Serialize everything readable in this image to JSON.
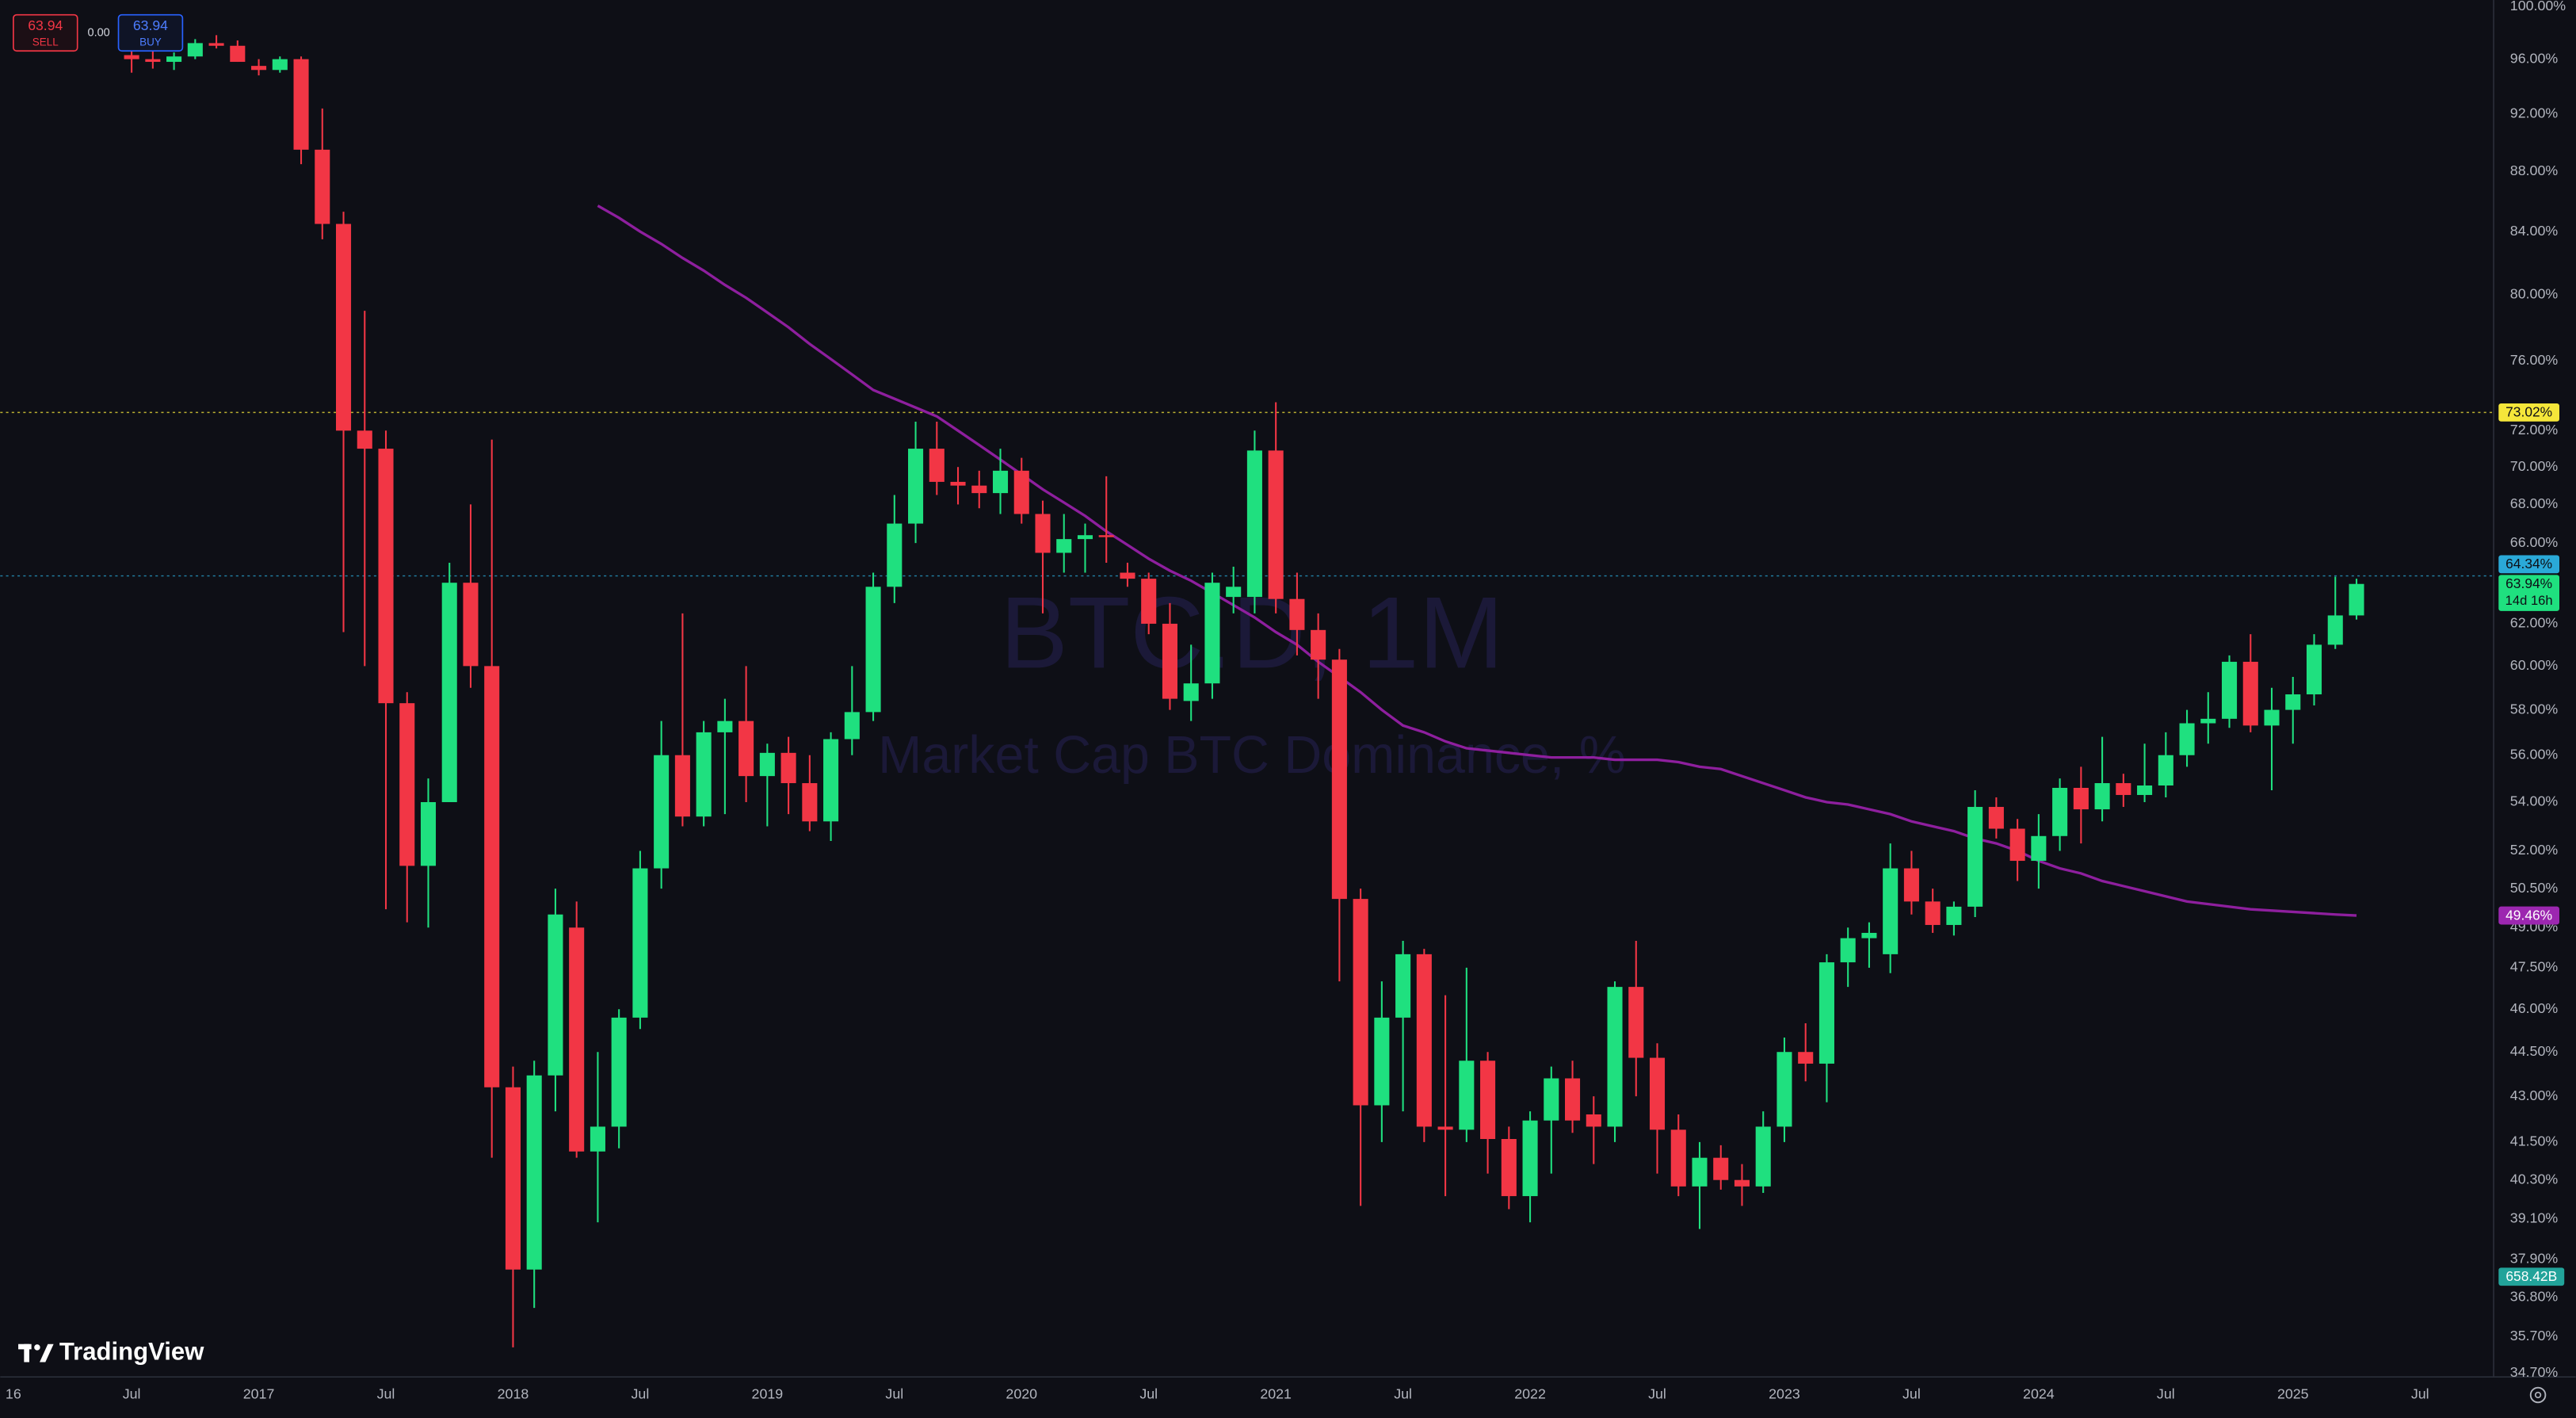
{
  "chart_data": {
    "type": "candlestick",
    "title": "BTC.D, 1M",
    "subtitle": "Market Cap BTC Dominance, %",
    "x": [
      "2016-07",
      "2016-08",
      "2016-09",
      "2016-10",
      "2016-11",
      "2016-12",
      "2017-01",
      "2017-02",
      "2017-03",
      "2017-04",
      "2017-05",
      "2017-06",
      "2017-07",
      "2017-08",
      "2017-09",
      "2017-10",
      "2017-11",
      "2017-12",
      "2018-01",
      "2018-02",
      "2018-03",
      "2018-04",
      "2018-05",
      "2018-06",
      "2018-07",
      "2018-08",
      "2018-09",
      "2018-10",
      "2018-11",
      "2018-12",
      "2019-01",
      "2019-02",
      "2019-03",
      "2019-04",
      "2019-05",
      "2019-06",
      "2019-07",
      "2019-08",
      "2019-09",
      "2019-10",
      "2019-11",
      "2019-12",
      "2020-01",
      "2020-02",
      "2020-03",
      "2020-04",
      "2020-05",
      "2020-06",
      "2020-07",
      "2020-08",
      "2020-09",
      "2020-10",
      "2020-11",
      "2020-12",
      "2021-01",
      "2021-02",
      "2021-03",
      "2021-04",
      "2021-05",
      "2021-06",
      "2021-07",
      "2021-08",
      "2021-09",
      "2021-10",
      "2021-11",
      "2021-12",
      "2022-01",
      "2022-02",
      "2022-03",
      "2022-04",
      "2022-05",
      "2022-06",
      "2022-07",
      "2022-08",
      "2022-09",
      "2022-10",
      "2022-11",
      "2022-12",
      "2023-01",
      "2023-02",
      "2023-03",
      "2023-04",
      "2023-05",
      "2023-06",
      "2023-07",
      "2023-08",
      "2023-09",
      "2023-10",
      "2023-11",
      "2023-12",
      "2024-01",
      "2024-02",
      "2024-03",
      "2024-04",
      "2024-05",
      "2024-06",
      "2024-07",
      "2024-08",
      "2024-09",
      "2024-10",
      "2024-11",
      "2024-12",
      "2025-01",
      "2025-02",
      "2025-03",
      "2025-04"
    ],
    "open": [
      96.3,
      96.0,
      95.8,
      96.2,
      97.2,
      97.0,
      95.5,
      95.2,
      96.0,
      89.5,
      84.5,
      72.0,
      71.0,
      58.3,
      51.4,
      54.0,
      64.0,
      60.0,
      43.3,
      37.6,
      43.7,
      49.0,
      41.2,
      42.0,
      45.7,
      51.3,
      56.0,
      53.4,
      57.0,
      57.5,
      55.1,
      56.1,
      54.8,
      53.2,
      56.7,
      57.9,
      63.8,
      67.0,
      71.0,
      69.2,
      69.0,
      68.6,
      69.8,
      67.5,
      65.5,
      66.2,
      66.4,
      64.5,
      64.2,
      62.0,
      58.4,
      59.2,
      63.3,
      63.3,
      70.9,
      63.2,
      61.7,
      60.3,
      50.1,
      42.7,
      45.7,
      48.0,
      42.0,
      41.9,
      44.2,
      41.6,
      39.8,
      42.2,
      43.6,
      42.4,
      42.0,
      46.8,
      44.3,
      41.9,
      40.1,
      41.0,
      40.3,
      40.1,
      42.0,
      44.5,
      44.1,
      47.7,
      48.6,
      48.0,
      51.3,
      50.0,
      49.1,
      49.8,
      53.8,
      52.9,
      51.6,
      52.6,
      54.6,
      53.7,
      54.8,
      54.3,
      54.7,
      56.0,
      57.4,
      57.6,
      60.2,
      57.3,
      58.0,
      58.7,
      61.0,
      62.4
    ],
    "high": [
      96.8,
      96.6,
      96.5,
      97.5,
      97.8,
      97.4,
      96.0,
      96.2,
      96.2,
      92.4,
      85.3,
      79.0,
      72.0,
      58.8,
      55.0,
      65.0,
      68.0,
      71.5,
      44.0,
      44.2,
      50.5,
      50.0,
      44.5,
      46.0,
      52.0,
      57.5,
      62.5,
      57.5,
      58.5,
      60.0,
      56.5,
      56.8,
      56.0,
      57.0,
      60.0,
      64.5,
      68.5,
      72.5,
      72.5,
      70.0,
      69.8,
      71.0,
      70.5,
      68.2,
      67.5,
      67.0,
      69.5,
      65.0,
      64.5,
      63.0,
      61.0,
      64.5,
      64.8,
      72.0,
      73.6,
      64.5,
      62.5,
      60.8,
      50.5,
      47.0,
      48.5,
      48.2,
      46.5,
      47.5,
      44.5,
      42.0,
      42.5,
      44.0,
      44.2,
      43.0,
      47.0,
      48.5,
      44.8,
      42.4,
      41.5,
      41.4,
      40.8,
      42.5,
      45.0,
      45.5,
      48.0,
      49.0,
      49.2,
      52.3,
      52.0,
      50.5,
      50.0,
      54.5,
      54.2,
      53.3,
      53.5,
      55.0,
      55.5,
      56.8,
      55.2,
      56.5,
      57.0,
      58.0,
      58.8,
      60.5,
      61.5,
      59.0,
      59.5,
      61.5,
      64.3,
      64.2
    ],
    "low": [
      95.0,
      95.3,
      95.2,
      96.0,
      96.8,
      95.8,
      94.8,
      95.0,
      88.5,
      83.5,
      61.6,
      60.0,
      49.7,
      49.2,
      49.0,
      54.0,
      59.0,
      41.0,
      35.4,
      36.5,
      42.5,
      41.0,
      39.0,
      41.3,
      45.3,
      50.5,
      53.0,
      53.0,
      53.5,
      54.0,
      53.0,
      53.5,
      52.8,
      52.4,
      56.0,
      57.5,
      63.0,
      66.0,
      68.5,
      68.0,
      67.8,
      67.5,
      67.0,
      62.5,
      64.5,
      64.5,
      65.0,
      63.8,
      61.5,
      58.0,
      57.5,
      58.5,
      62.5,
      62.5,
      62.5,
      60.5,
      58.5,
      47.0,
      39.5,
      41.5,
      42.5,
      41.5,
      39.8,
      41.5,
      40.5,
      39.4,
      39.0,
      40.5,
      41.8,
      40.8,
      41.5,
      43.0,
      40.5,
      39.8,
      38.8,
      40.0,
      39.5,
      39.9,
      41.5,
      43.5,
      42.8,
      46.8,
      47.5,
      47.3,
      49.5,
      48.8,
      48.7,
      49.4,
      52.5,
      50.8,
      50.5,
      52.0,
      52.3,
      53.2,
      53.8,
      54.0,
      54.2,
      55.5,
      56.5,
      57.2,
      57.0,
      54.5,
      56.5,
      58.2,
      60.8,
      62.2
    ],
    "close": [
      96.0,
      95.8,
      96.2,
      97.2,
      97.0,
      95.8,
      95.2,
      96.0,
      89.5,
      84.5,
      72.0,
      71.0,
      58.3,
      51.4,
      54.0,
      64.0,
      60.0,
      43.3,
      37.6,
      43.7,
      49.5,
      41.2,
      42.0,
      45.7,
      51.3,
      56.0,
      53.4,
      57.0,
      57.5,
      55.1,
      56.1,
      54.8,
      53.2,
      56.7,
      57.9,
      63.8,
      67.0,
      71.0,
      69.2,
      69.0,
      68.6,
      69.8,
      67.5,
      65.5,
      66.2,
      66.4,
      66.3,
      64.2,
      62.0,
      58.5,
      59.2,
      64.0,
      63.8,
      70.9,
      63.2,
      61.7,
      60.3,
      50.1,
      42.7,
      45.7,
      48.0,
      42.0,
      41.9,
      44.2,
      41.6,
      39.8,
      42.2,
      43.6,
      42.2,
      42.0,
      46.8,
      44.3,
      41.9,
      40.1,
      41.0,
      40.3,
      40.1,
      42.0,
      44.5,
      44.1,
      47.7,
      48.6,
      48.8,
      51.3,
      50.0,
      49.1,
      49.8,
      53.8,
      52.9,
      51.6,
      52.6,
      54.6,
      53.7,
      54.8,
      54.3,
      54.7,
      56.0,
      57.4,
      57.6,
      60.2,
      57.3,
      58.0,
      58.7,
      61.0,
      62.4,
      63.94
    ],
    "up_color": "#1fe07f",
    "down_color": "#f23645",
    "overlay": {
      "color": "#8e1f9e",
      "values": [
        null,
        null,
        null,
        null,
        null,
        null,
        null,
        null,
        null,
        null,
        null,
        null,
        null,
        null,
        null,
        null,
        null,
        null,
        null,
        null,
        null,
        null,
        85.7,
        84.9,
        84.0,
        83.2,
        82.3,
        81.5,
        80.6,
        79.8,
        78.9,
        78.0,
        77.0,
        76.1,
        75.2,
        74.3,
        73.8,
        73.3,
        72.8,
        72.0,
        71.2,
        70.4,
        69.6,
        68.8,
        68.1,
        67.4,
        66.6,
        65.9,
        65.2,
        64.6,
        64.1,
        63.5,
        62.9,
        62.3,
        61.6,
        61.0,
        60.2,
        59.5,
        58.8,
        58.0,
        57.3,
        57.0,
        56.6,
        56.3,
        56.2,
        56.1,
        56.0,
        55.9,
        55.9,
        55.9,
        55.8,
        55.8,
        55.8,
        55.7,
        55.5,
        55.4,
        55.1,
        54.8,
        54.5,
        54.2,
        54.0,
        53.9,
        53.7,
        53.5,
        53.2,
        53.0,
        52.8,
        52.5,
        52.3,
        52.0,
        51.6,
        51.3,
        51.1,
        50.8,
        50.6,
        50.4,
        50.2,
        50.0,
        49.9,
        49.8,
        49.7,
        49.65,
        49.6,
        49.55,
        49.5,
        49.46
      ],
      "label": "49.46%"
    },
    "ylim": [
      34.6,
      100.5
    ],
    "log_scale": true,
    "grid": false,
    "yticks": [
      {
        "value": 100,
        "label": "100.00%"
      },
      {
        "value": 96,
        "label": "96.00%"
      },
      {
        "value": 92,
        "label": "92.00%"
      },
      {
        "value": 88,
        "label": "88.00%"
      },
      {
        "value": 84,
        "label": "84.00%"
      },
      {
        "value": 80,
        "label": "80.00%"
      },
      {
        "value": 76,
        "label": "76.00%"
      },
      {
        "value": 72,
        "label": "72.00%"
      },
      {
        "value": 70,
        "label": "70.00%"
      },
      {
        "value": 68,
        "label": "68.00%"
      },
      {
        "value": 66,
        "label": "66.00%"
      },
      {
        "value": 62,
        "label": "62.00%"
      },
      {
        "value": 60,
        "label": "60.00%"
      },
      {
        "value": 58,
        "label": "58.00%"
      },
      {
        "value": 56,
        "label": "56.00%"
      },
      {
        "value": 54,
        "label": "54.00%"
      },
      {
        "value": 52,
        "label": "52.00%"
      },
      {
        "value": 50.5,
        "label": "50.50%"
      },
      {
        "value": 49,
        "label": "49.00%"
      },
      {
        "value": 47.5,
        "label": "47.50%"
      },
      {
        "value": 46,
        "label": "46.00%"
      },
      {
        "value": 44.5,
        "label": "44.50%"
      },
      {
        "value": 43,
        "label": "43.00%"
      },
      {
        "value": 41.5,
        "label": "41.50%"
      },
      {
        "value": 40.3,
        "label": "40.30%"
      },
      {
        "value": 39.1,
        "label": "39.10%"
      },
      {
        "value": 37.9,
        "label": "37.90%"
      },
      {
        "value": 36.8,
        "label": "36.80%"
      },
      {
        "value": 35.7,
        "label": "35.70%"
      },
      {
        "value": 34.7,
        "label": "34.70%"
      }
    ],
    "xticks": [
      {
        "value": "2016-01",
        "label": "16"
      },
      {
        "value": "2016-07",
        "label": "Jul"
      },
      {
        "value": "2017-01",
        "label": "2017"
      },
      {
        "value": "2017-07",
        "label": "Jul"
      },
      {
        "value": "2018-01",
        "label": "2018"
      },
      {
        "value": "2018-07",
        "label": "Jul"
      },
      {
        "value": "2019-01",
        "label": "2019"
      },
      {
        "value": "2019-07",
        "label": "Jul"
      },
      {
        "value": "2020-01",
        "label": "2020"
      },
      {
        "value": "2020-07",
        "label": "Jul"
      },
      {
        "value": "2021-01",
        "label": "2021"
      },
      {
        "value": "2021-07",
        "label": "Jul"
      },
      {
        "value": "2022-01",
        "label": "2022"
      },
      {
        "value": "2022-07",
        "label": "Jul"
      },
      {
        "value": "2023-01",
        "label": "2023"
      },
      {
        "value": "2023-07",
        "label": "Jul"
      },
      {
        "value": "2024-01",
        "label": "2024"
      },
      {
        "value": "2024-07",
        "label": "Jul"
      },
      {
        "value": "2025-01",
        "label": "2025"
      },
      {
        "value": "2025-07",
        "label": "Jul"
      }
    ],
    "levels": [
      {
        "value": 73.02,
        "label": "73.02%",
        "color": "#f5e63a"
      },
      {
        "value": 64.34,
        "label": "64.34%",
        "color": "#2aa9d8"
      }
    ],
    "last_label": "63.94%",
    "countdown": "14d 16h",
    "volume_label": "658.42B"
  },
  "widget": {
    "sell_price": "63.94",
    "sell": "SELL",
    "spread": "0.00",
    "buy_price": "63.94",
    "buy": "BUY"
  },
  "logo": "TradingView"
}
